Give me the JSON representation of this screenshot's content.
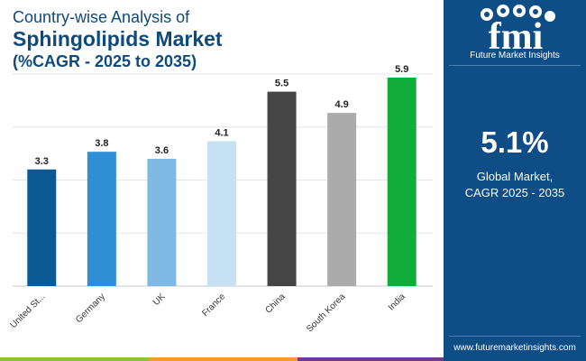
{
  "header": {
    "title_line1": "Country-wise Analysis of",
    "title_line2": "Sphingolipids Market",
    "title_line3": "(%CAGR - 2025 to 2035)"
  },
  "side_panel": {
    "logo_text": "fmi",
    "logo_tagline": "Future Market Insights",
    "highlight_value": "5.1%",
    "highlight_desc_line1": "Global Market,",
    "highlight_desc_line2": "CAGR 2025 - 2035",
    "website": "www.futuremarketinsights.com"
  },
  "colors": {
    "title": "#0d4a7e",
    "panel_bg": "#0f4d86",
    "grid": "#e6e6e6"
  },
  "chart_data": {
    "type": "bar",
    "title": "Country-wise Analysis of Sphingolipids Market (%CAGR - 2025 to 2035)",
    "xlabel": "",
    "ylabel": "",
    "ylim": [
      0,
      6
    ],
    "grid": true,
    "categories": [
      "United St...",
      "Germany",
      "UK",
      "France",
      "China",
      "South Korea",
      "India"
    ],
    "values": [
      3.3,
      3.8,
      3.6,
      4.1,
      5.5,
      4.9,
      5.9
    ],
    "value_labels": [
      "3.3",
      "3.8",
      "3.6",
      "4.1",
      "5.5",
      "4.9",
      "5.9"
    ],
    "bar_colors": [
      "#0c5a94",
      "#2e8fd4",
      "#7db9e2",
      "#c6e1f4",
      "#454545",
      "#ababab",
      "#11ad3a"
    ]
  }
}
